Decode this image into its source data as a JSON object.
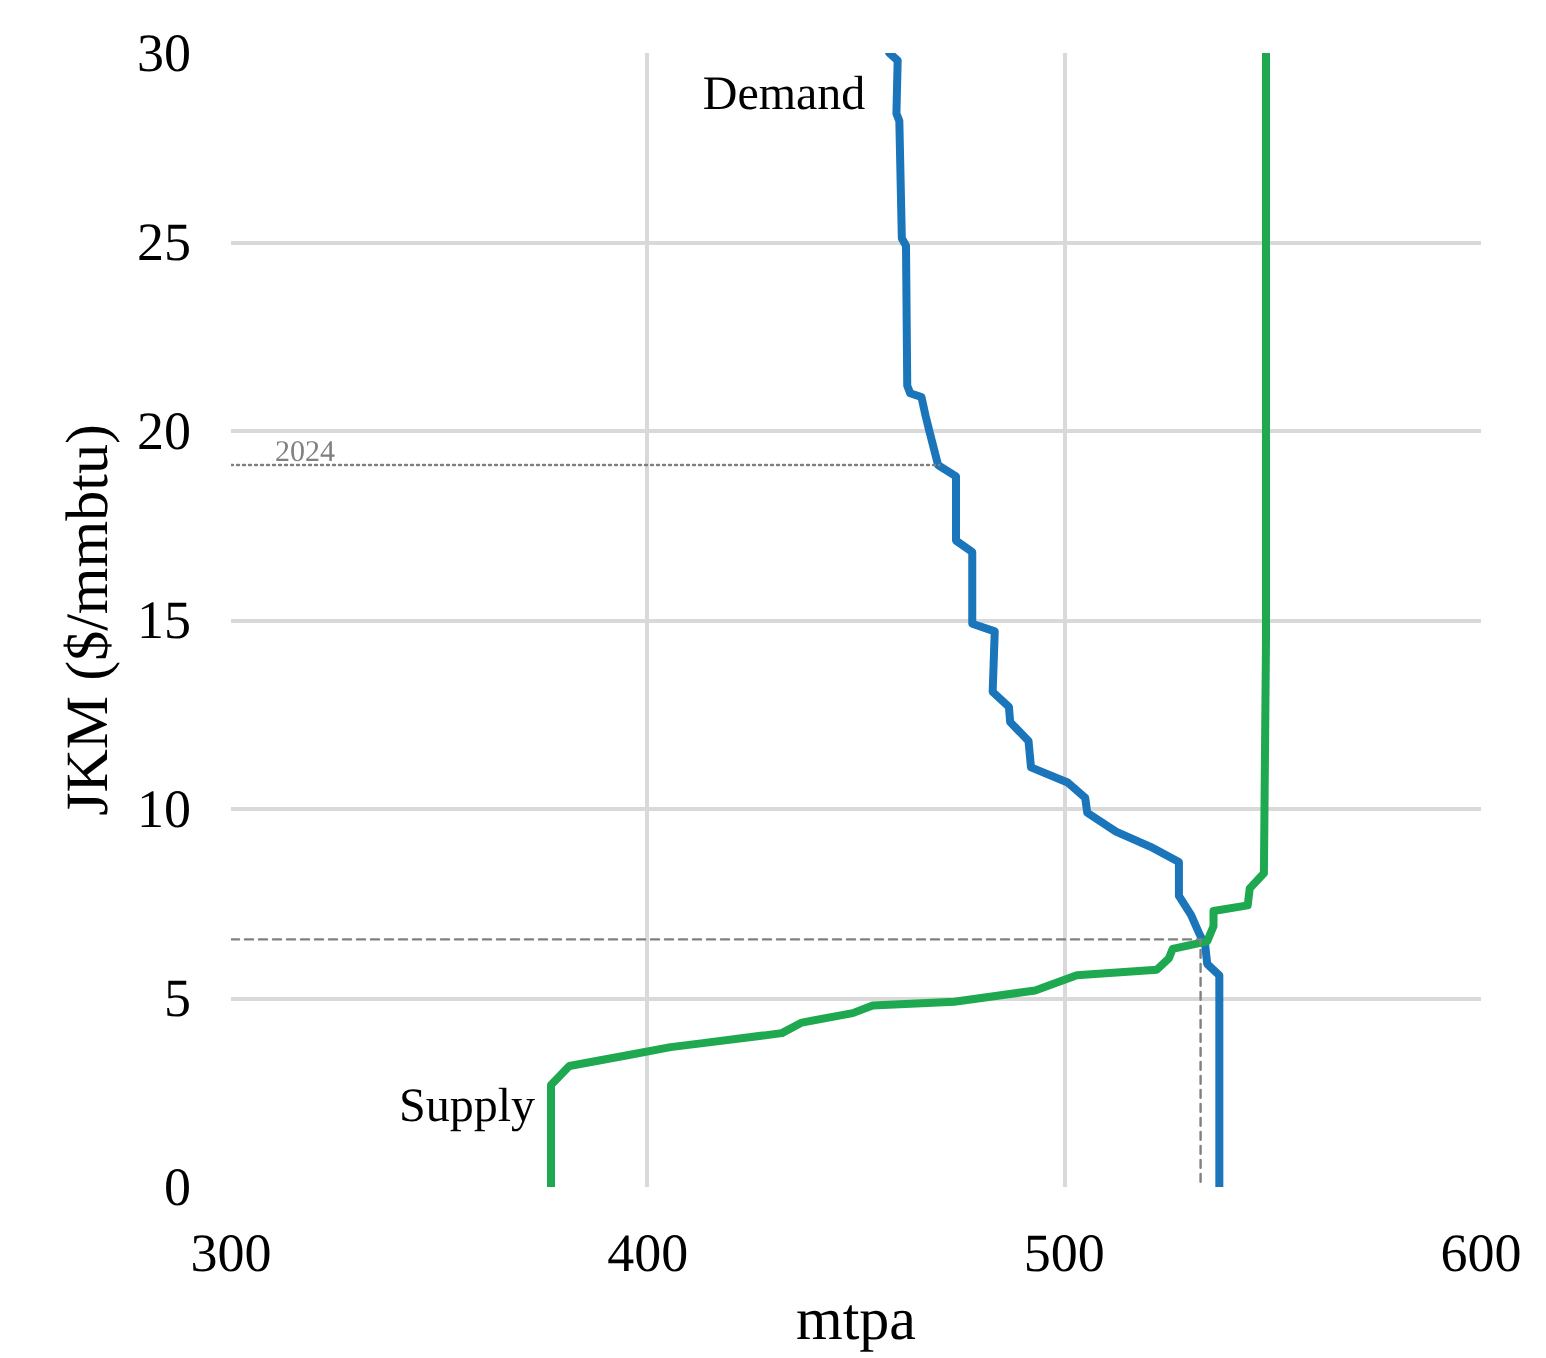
{
  "chart_data": {
    "type": "line",
    "xlabel": "mtpa",
    "ylabel": "JKM ($/mmbtu)",
    "xlim": [
      300,
      600
    ],
    "ylim": [
      0,
      30
    ],
    "xticks": [
      300,
      400,
      500,
      600
    ],
    "yticks": [
      0,
      5,
      10,
      15,
      20,
      25,
      30
    ],
    "grid": true,
    "marker": "none",
    "series": [
      {
        "name": "Demand",
        "color": "#1a75bb",
        "line_style": "solid",
        "x": [
          537.2,
          537.2,
          534.3,
          533.8,
          532.4,
          530.4,
          527.5,
          527.5,
          520.7,
          512.4,
          505.5,
          505,
          500.8,
          492,
          491.4,
          487,
          486.7,
          482.8,
          483.3,
          477.9,
          477.9,
          474,
          474,
          469.7,
          467.6,
          466.7,
          465.7,
          463,
          462.3,
          462,
          461,
          460.4,
          459.7,
          460,
          458
        ],
        "values": [
          0,
          5.6,
          5.9,
          6.4,
          6.7,
          7.2,
          7.7,
          8.6,
          9.0,
          9.4,
          9.9,
          10.3,
          10.7,
          11.1,
          11.8,
          12.3,
          12.7,
          13.1,
          14.7,
          14.9,
          16.8,
          17.1,
          18.8,
          19.1,
          20.0,
          20.4,
          20.9,
          21,
          21.2,
          24.9,
          25.1,
          28.2,
          28.4,
          29.8,
          30
        ]
      },
      {
        "name": "Supply",
        "color": "#1ea84f",
        "line_style": "solid",
        "x": [
          376.8,
          376.8,
          381.2,
          395.8,
          405.5,
          412.8,
          432.2,
          437,
          449.2,
          454,
          473.6,
          493,
          503,
          522.2,
          525.1,
          526,
          534.3,
          535.8,
          535.8,
          544,
          544.5,
          547.9,
          548.4,
          548.4
        ],
        "values": [
          0,
          2.7,
          3.2,
          3.5,
          3.7,
          3.8,
          4.07,
          4.35,
          4.6,
          4.8,
          4.9,
          5.2,
          5.6,
          5.75,
          6.05,
          6.3,
          6.5,
          6.9,
          7.3,
          7.45,
          7.9,
          8.3,
          14.5,
          30
        ]
      },
      {
        "color": "#808080",
        "line_style": "dashed",
        "x": [
          300,
          532.7,
          532.7
        ],
        "values": [
          6.55,
          6.55,
          0
        ]
      },
      {
        "name": "2024",
        "color": "#808080",
        "line_style": "dotted",
        "x": [
          300,
          470
        ],
        "values": [
          19.1,
          19.1
        ]
      }
    ]
  }
}
